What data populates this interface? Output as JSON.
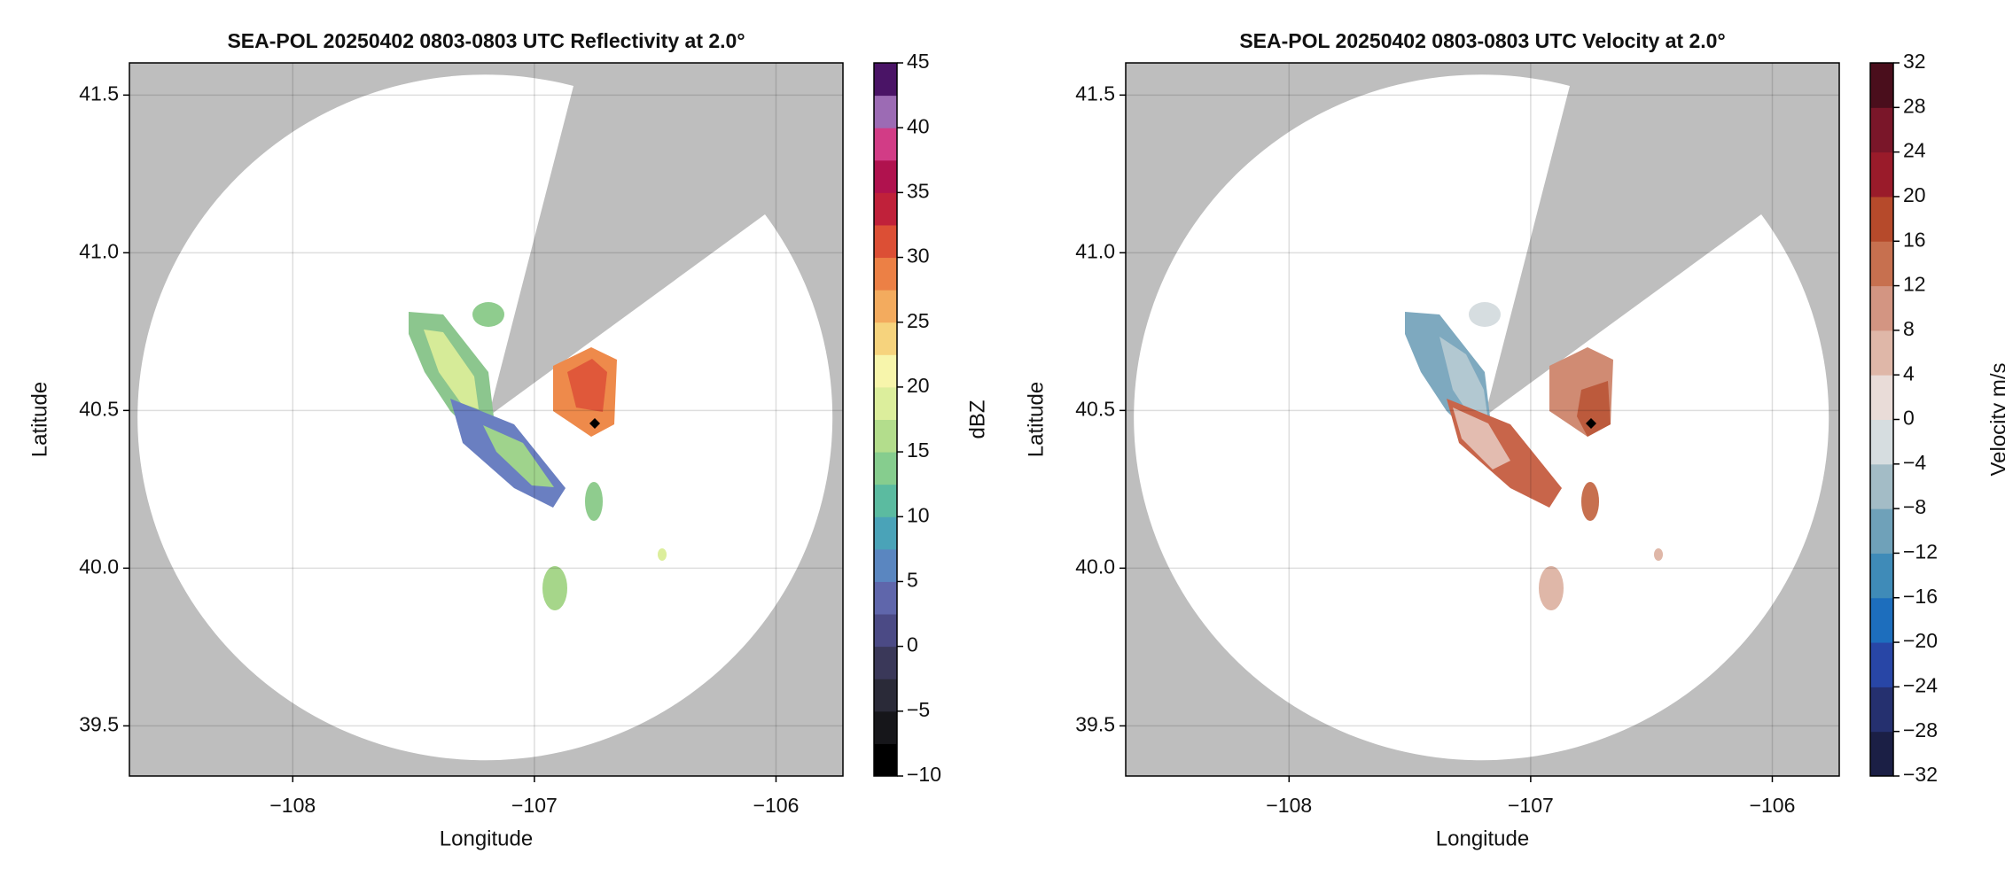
{
  "chart_data": [
    {
      "type": "radar",
      "title": "SEA-POL 20250402 0803-0803 UTC Reflectivity at 2.0°",
      "xlabel": "Longitude",
      "ylabel": "Latitude",
      "xlim": [
        -108.676,
        -105.723
      ],
      "ylim": [
        39.341,
        41.602
      ],
      "xticks": [
        {
          "value": -108,
          "label": "−108"
        },
        {
          "value": -107,
          "label": "−107"
        },
        {
          "value": -106,
          "label": "−106"
        }
      ],
      "yticks": [
        39.5,
        {
          "value": 40,
          "label": "40.0"
        },
        40.5,
        {
          "value": 41,
          "label": "41.0"
        },
        41.5
      ],
      "grid": true,
      "background": "#bebebe",
      "colorbar": {
        "label": "dBZ",
        "clim": [
          -10,
          45
        ],
        "ticks": [
          {
            "value": -10,
            "label": "−10"
          },
          {
            "value": -5,
            "label": "−5"
          },
          0,
          5,
          10,
          15,
          20,
          25,
          30,
          35,
          40,
          45
        ],
        "colors": [
          "#000000",
          "#16161a",
          "#2a2a38",
          "#3a3859",
          "#4b4a85",
          "#5f66ab",
          "#5a86c0",
          "#4aa3b8",
          "#5bbba0",
          "#86cd8e",
          "#b3dd8c",
          "#dcee9c",
          "#f7f5ab",
          "#f6d37d",
          "#f3ab5e",
          "#ec8045",
          "#dc4f35",
          "#c0213a",
          "#b0124e",
          "#d23c86",
          "#9c6bb4",
          "#4a1466"
        ]
      }
    },
    {
      "type": "radar",
      "title": "SEA-POL 20250402 0803-0803 UTC Velocity at 2.0°",
      "xlabel": "Longitude",
      "ylabel": "Latitude",
      "xlim": [
        -108.676,
        -105.723
      ],
      "ylim": [
        39.341,
        41.602
      ],
      "xticks": [
        {
          "value": -108,
          "label": "−108"
        },
        {
          "value": -107,
          "label": "−107"
        },
        {
          "value": -106,
          "label": "−106"
        }
      ],
      "yticks": [
        39.5,
        {
          "value": 40,
          "label": "40.0"
        },
        40.5,
        {
          "value": 41,
          "label": "41.0"
        },
        41.5
      ],
      "grid": true,
      "background": "#bebebe",
      "colorbar": {
        "label": "Velocity m/s",
        "clim": [
          -32,
          32
        ],
        "ticks": [
          {
            "value": -32,
            "label": "−32"
          },
          {
            "value": -28,
            "label": "−28"
          },
          {
            "value": -24,
            "label": "−24"
          },
          {
            "value": -20,
            "label": "−20"
          },
          {
            "value": -16,
            "label": "−16"
          },
          {
            "value": -12,
            "label": "−12"
          },
          {
            "value": -8,
            "label": "−8"
          },
          {
            "value": -4,
            "label": "−4"
          },
          0,
          4,
          8,
          12,
          16,
          20,
          24,
          28,
          32
        ],
        "colors": [
          "#1b1f45",
          "#25306f",
          "#2846a6",
          "#1d6ebd",
          "#3f8bb8",
          "#6fa1b9",
          "#a3bcc6",
          "#d6dde0",
          "#e9dcd8",
          "#dfb7a8",
          "#d39582",
          "#c7704f",
          "#b64a2b",
          "#9a1b2a",
          "#7a1629",
          "#4a0e1c"
        ]
      }
    }
  ]
}
